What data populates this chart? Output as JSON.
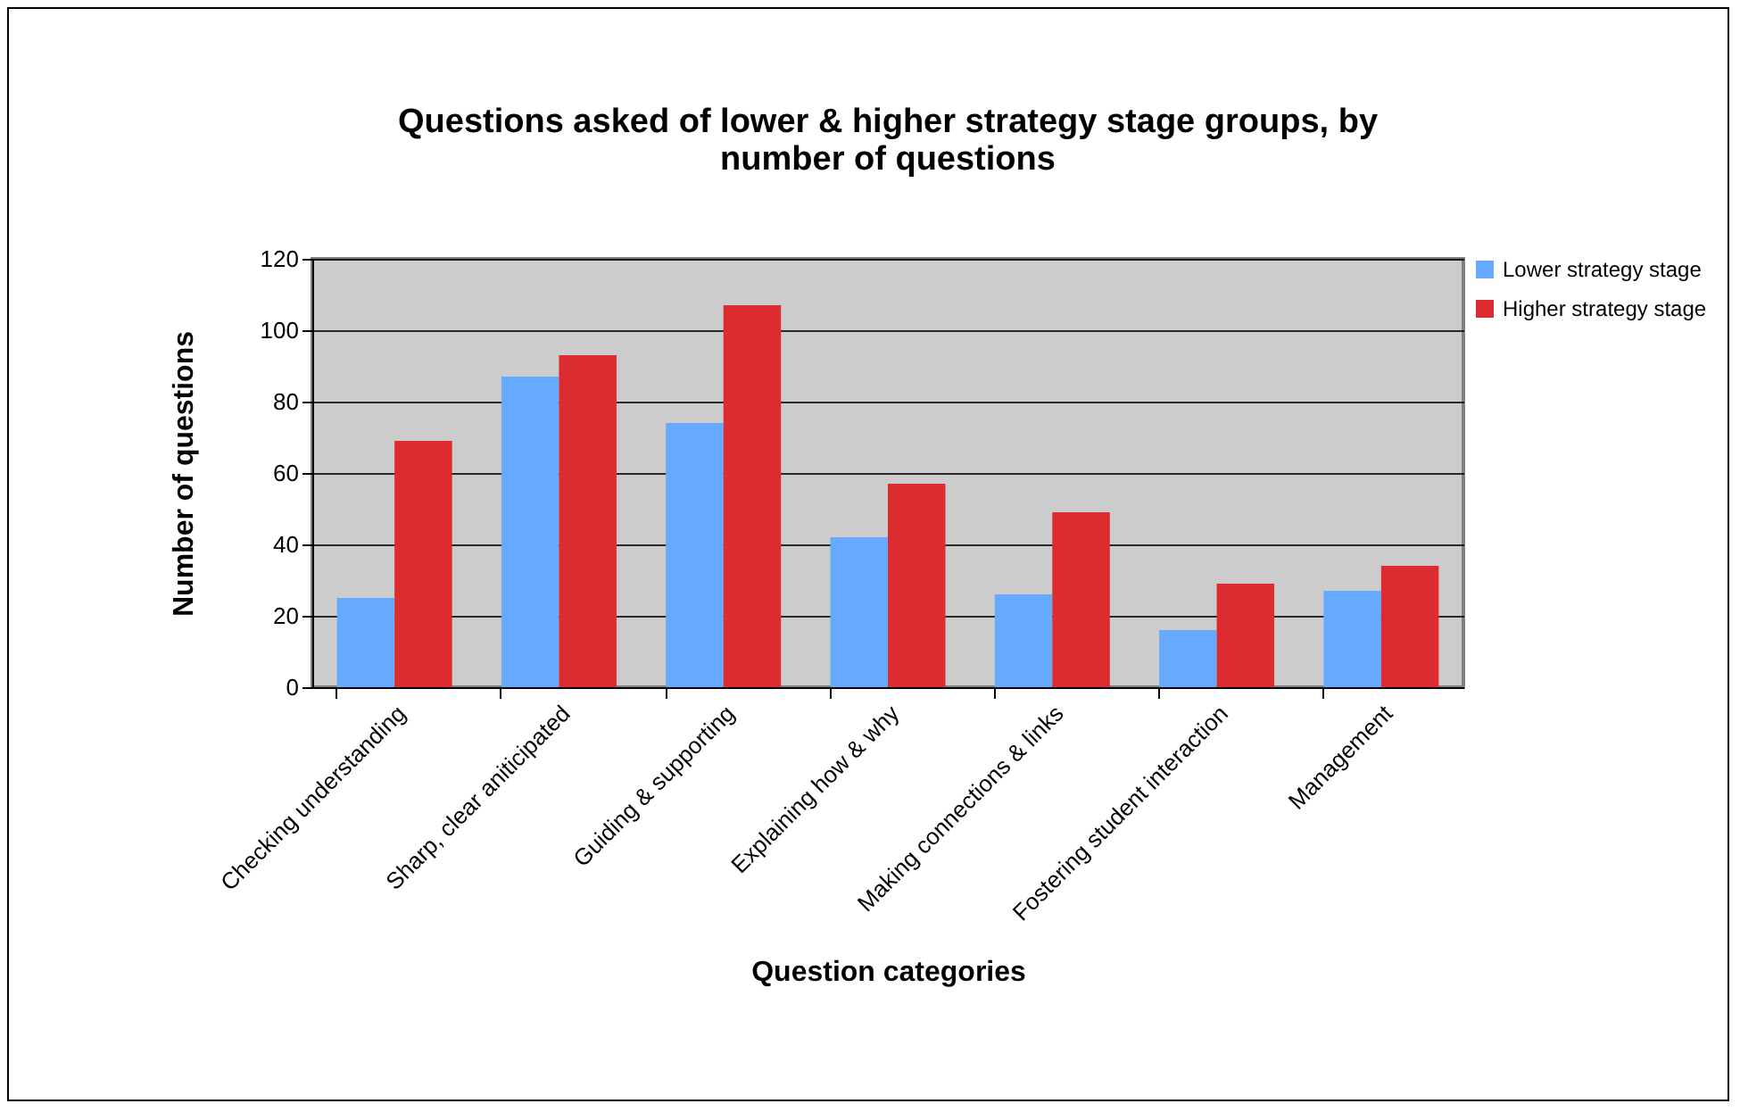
{
  "chart_data": {
    "type": "bar",
    "title": "Questions asked of lower & higher strategy stage groups, by number of questions",
    "xlabel": "Question categories",
    "ylabel": "Number of questions",
    "categories": [
      "Checking understanding",
      "Sharp, clear aniticipated",
      "Guiding & supporting",
      "Explaining how & why",
      "Making connections & links",
      "Fostering student interaction",
      "Management"
    ],
    "series": [
      {
        "name": "Lower strategy stage",
        "color": "#66aaff",
        "values": [
          25,
          87,
          74,
          42,
          26,
          16,
          27
        ]
      },
      {
        "name": "Higher strategy stage",
        "color": "#dd2c2f",
        "values": [
          69,
          93,
          107,
          57,
          49,
          29,
          34
        ]
      }
    ],
    "ylim": [
      0,
      120
    ],
    "yticks": [
      0,
      20,
      40,
      60,
      80,
      100,
      120
    ],
    "grid": "y",
    "legend": "right"
  }
}
